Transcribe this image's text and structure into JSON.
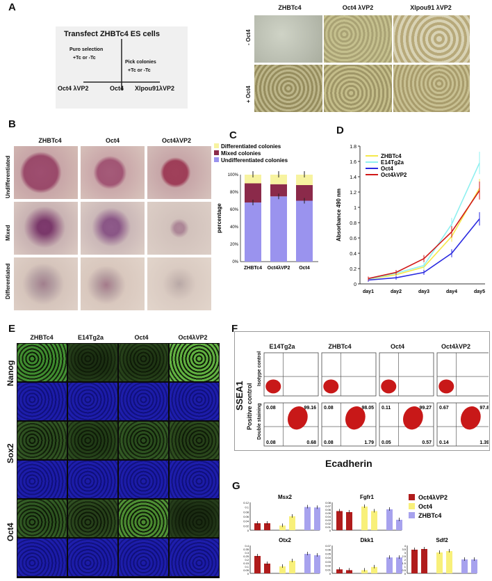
{
  "panel_letters": {
    "A": "A",
    "B": "B",
    "C": "C",
    "D": "D",
    "E": "E",
    "F": "F",
    "G": "G"
  },
  "panelA": {
    "title": "Transfect ZHBTc4 ES cells",
    "puro": "Puro selection",
    "puro_tc": "+Tc or -Tc",
    "pick": "Pick colonies",
    "pick_tc": "+Tc or -Tc",
    "leaves": [
      "Oct4 λVP2",
      "Oct4",
      "Xlpou91λVP2"
    ],
    "col_headers": [
      "ZHBTc4",
      "Oct4 λVP2",
      "Xlpou91 λVP2"
    ],
    "row_labels": [
      "- Oct4",
      "+ Oct4"
    ]
  },
  "panelB": {
    "col_headers": [
      "ZHBTc4",
      "Oct4",
      "Oct4λVP2"
    ],
    "row_labels": [
      "Undifferentiated",
      "Mixed",
      "Differentiated"
    ]
  },
  "colors": {
    "diff": "#f7f3a0",
    "mixed": "#8b2a4a",
    "undiff": "#9a93ee",
    "zhbtc4": "#f5e84a",
    "e14": "#8ff0f0",
    "oct4": "#2a2ae0",
    "oct4vp2": "#d01818",
    "red": "#b01c1c",
    "yellow": "#f8f07a",
    "lav": "#a7a2ee"
  },
  "chart_data": [
    {
      "type": "bar",
      "stacked": true,
      "categories": [
        "ZHBTc4",
        "Oct4λVP2",
        "Oct4"
      ],
      "series": [
        {
          "name": "Undifferentiated colonies",
          "values": [
            68,
            75,
            70
          ]
        },
        {
          "name": "Mixed colonies",
          "values": [
            22,
            14,
            18
          ]
        },
        {
          "name": "Differentiated colonies",
          "values": [
            10,
            11,
            12
          ]
        }
      ],
      "ylabel": "percentage",
      "yticks": [
        "0%",
        "20%",
        "40%",
        "60%",
        "80%",
        "100%"
      ],
      "ylim": [
        0,
        100
      ]
    },
    {
      "type": "line",
      "x": [
        "day1",
        "day2",
        "day3",
        "day4",
        "day5"
      ],
      "series": [
        {
          "name": "ZHBTc4",
          "values": [
            0.06,
            0.12,
            0.22,
            0.62,
            1.25
          ]
        },
        {
          "name": "E14Tg2a",
          "values": [
            0.06,
            0.14,
            0.24,
            0.78,
            1.58
          ]
        },
        {
          "name": "Oct4",
          "values": [
            0.05,
            0.08,
            0.15,
            0.4,
            0.85
          ]
        },
        {
          "name": "Oct4λVP2",
          "values": [
            0.07,
            0.15,
            0.33,
            0.68,
            1.22
          ]
        }
      ],
      "ylabel": "Absorbance 490 nm",
      "yticks": [
        "0",
        "0.2",
        "0.4",
        "0.6",
        "0.8",
        "1",
        "1.2",
        "1.4",
        "1.6",
        "1.8"
      ],
      "ylim": [
        0,
        1.8
      ]
    },
    {
      "type": "bar",
      "legend": [
        "Oct4λVP2",
        "Oct4",
        "ZHBTc4"
      ],
      "subplots": [
        {
          "title": "Msx2",
          "yticks": [
            "0",
            "0.02",
            "0.04",
            "0.06",
            "0.08",
            "0.1",
            "0.12"
          ],
          "ymax": 0.12,
          "values": [
            0.03,
            0.03,
            0.02,
            0.06,
            0.1,
            0.098
          ]
        },
        {
          "title": "Fgfr1",
          "yticks": [
            "0",
            "0.01",
            "0.02",
            "0.03",
            "0.04",
            "0.05",
            "0.06",
            "0.07",
            "0.08"
          ],
          "ymax": 0.08,
          "values": [
            0.055,
            0.052,
            0.068,
            0.055,
            0.06,
            0.03
          ]
        },
        {
          "title": "Otx2",
          "yticks": [
            "0",
            "0.05",
            "0.1",
            "0.15",
            "0.2",
            "0.25",
            "0.3",
            "0.35",
            "0.4"
          ],
          "ymax": 0.4,
          "values": [
            0.25,
            0.14,
            0.1,
            0.18,
            0.28,
            0.26
          ]
        },
        {
          "title": "Dkk1",
          "yticks": [
            "0",
            "0.01",
            "0.02",
            "0.03",
            "0.04",
            "0.05",
            "0.06",
            "0.07"
          ],
          "ymax": 0.07,
          "values": [
            0.01,
            0.008,
            0.008,
            0.016,
            0.04,
            0.04
          ]
        },
        {
          "title": "Sdf2",
          "yticks": [
            "0",
            "0.5",
            "1",
            "1.5",
            "2",
            "2.5",
            "3",
            "3.5",
            "4"
          ],
          "ymax": 4,
          "values": [
            3.4,
            3.5,
            3.0,
            3.2,
            2.0,
            2.0
          ]
        }
      ]
    }
  ],
  "panelE": {
    "col_headers": [
      "ZHBTc4",
      "E14Tg2a",
      "Oct4",
      "Oct4λVP2"
    ],
    "row_labels": [
      "Nanog",
      "Sox2",
      "Oct4"
    ]
  },
  "panelF": {
    "col_headers": [
      "E14Tg2a",
      "ZHBTc4",
      "Oct4",
      "Oct4λVP2"
    ],
    "y_axis": "SSEA1",
    "x_axis": "Ecadherin",
    "row_outer": "Positive control",
    "row_labels": [
      "Isotype control",
      "Double staining"
    ],
    "quads": [
      {
        "tl": "0.08",
        "tr": "99.16",
        "bl": "0.08",
        "br": "0.68"
      },
      {
        "tl": "0.08",
        "tr": "98.05",
        "bl": "0.08",
        "br": "1.79"
      },
      {
        "tl": "0.11",
        "tr": "99.27",
        "bl": "0.05",
        "br": "0.57"
      },
      {
        "tl": "0.67",
        "tr": "97.8",
        "bl": "0.14",
        "br": "1.39"
      }
    ]
  }
}
